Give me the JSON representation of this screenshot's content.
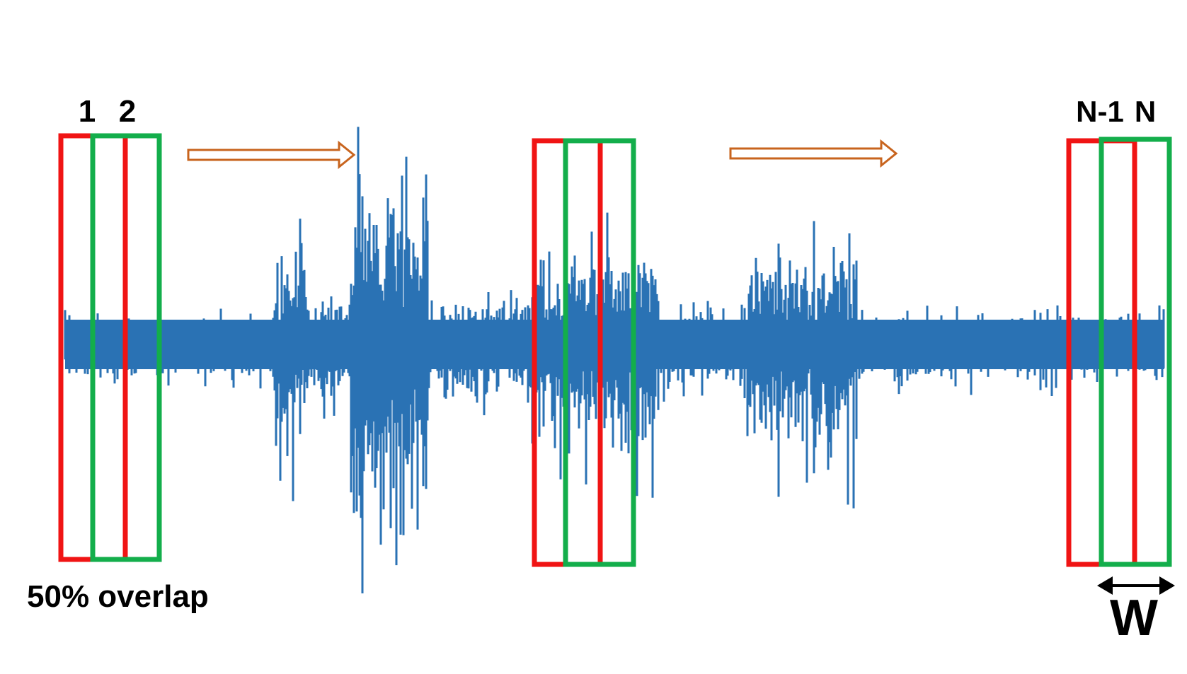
{
  "labels": {
    "window_1": "1",
    "window_2": "2",
    "window_n_minus_1": "N-1",
    "window_n": "N",
    "overlap": "50% overlap",
    "width": "W"
  },
  "colors": {
    "signal": "#2a72b4",
    "window_odd": "#f01414",
    "window_even": "#13ae4b",
    "arrow": "#c8641e",
    "text": "#000000"
  },
  "signal": {
    "seed": 7,
    "segments": [
      {
        "from": 0.0,
        "to": 0.19,
        "amp": 0.15
      },
      {
        "from": 0.19,
        "to": 0.22,
        "amp": 0.55
      },
      {
        "from": 0.22,
        "to": 0.26,
        "amp": 0.25
      },
      {
        "from": 0.26,
        "to": 0.33,
        "amp": 1.0
      },
      {
        "from": 0.33,
        "to": 0.42,
        "amp": 0.25
      },
      {
        "from": 0.42,
        "to": 0.54,
        "amp": 0.55
      },
      {
        "from": 0.54,
        "to": 0.62,
        "amp": 0.2
      },
      {
        "from": 0.62,
        "to": 0.72,
        "amp": 0.55
      },
      {
        "from": 0.72,
        "to": 1.0,
        "amp": 0.17
      }
    ]
  }
}
